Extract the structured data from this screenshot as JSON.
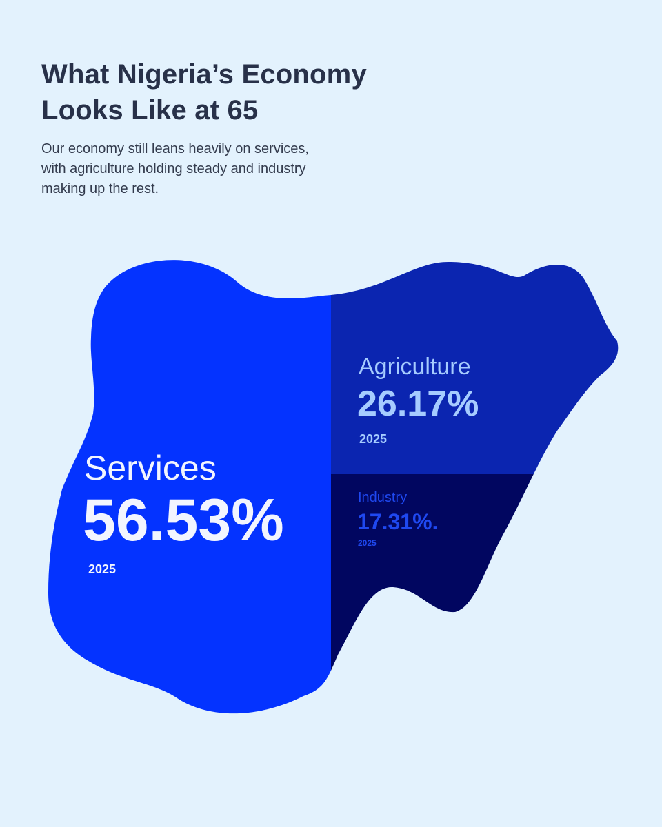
{
  "header": {
    "title_line1": "What Nigeria’s Economy",
    "title_line2": "Looks Like at 65",
    "subtitle_line1": "Our economy still leans heavily on services,",
    "subtitle_line2": "with agriculture holding steady and industry",
    "subtitle_line3": "making up the rest."
  },
  "colors": {
    "background": "#e3f2fd",
    "services": "#0433ff",
    "agriculture": "#0b25b0",
    "industry": "#010660",
    "title_text": "#283149"
  },
  "chart_data": {
    "type": "treemap",
    "shape": "map of Nigeria",
    "segments": [
      {
        "name": "Services",
        "value": 56.53,
        "value_label": "56.53%",
        "year": "2025",
        "color": "#0433ff",
        "label_color": "#f2f5ff"
      },
      {
        "name": "Agriculture",
        "value": 26.17,
        "value_label": "26.17%",
        "year": "2025",
        "color": "#0b25b0",
        "label_color": "#a6ccff"
      },
      {
        "name": "Industry",
        "value": 17.31,
        "value_label": "17.31%.",
        "year": "2025",
        "color": "#010660",
        "label_color": "#1f48f0"
      }
    ]
  }
}
